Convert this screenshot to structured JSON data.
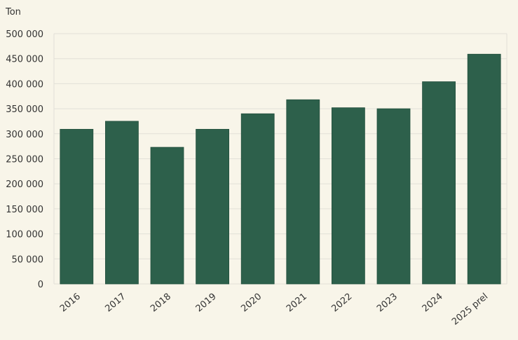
{
  "chart_data": {
    "type": "bar",
    "ylabel": "Ton",
    "categories": [
      "2016",
      "2017",
      "2018",
      "2019",
      "2020",
      "2021",
      "2022",
      "2023",
      "2024",
      "2025 prel"
    ],
    "values": [
      309000,
      325000,
      273000,
      309000,
      340000,
      368000,
      352000,
      350000,
      404000,
      459000
    ],
    "ylim": [
      0,
      500000
    ],
    "yticks": [
      0,
      50000,
      100000,
      150000,
      200000,
      250000,
      300000,
      350000,
      400000,
      450000,
      500000
    ],
    "ytick_labels": [
      "0",
      "50 000",
      "100 000",
      "150 000",
      "200 000",
      "250 000",
      "300 000",
      "350 000",
      "400 000",
      "450 000",
      "500 000"
    ],
    "grid": true,
    "colors": {
      "bar": "#2d604b",
      "background": "#f8f5e9",
      "grid": "#e2e0d8"
    }
  }
}
